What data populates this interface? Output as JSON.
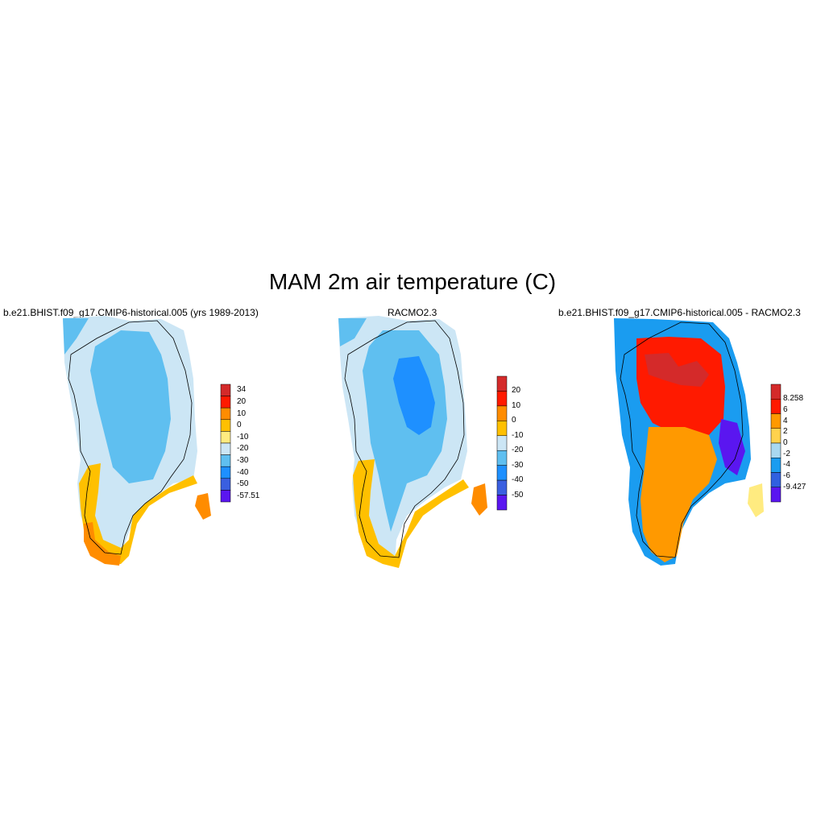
{
  "title": "MAM 2m air temperature (C)",
  "panels": [
    {
      "title": "b.e21.BHIST.f09_g17.CMIP6-historical.005 (yrs 1989-2013)",
      "colorbar": {
        "labels": [
          "34",
          "20",
          "10",
          "0",
          "-10",
          "-20",
          "-30",
          "-40",
          "-50",
          "-57.51"
        ],
        "colors": [
          "#d42a2a",
          "#ff1a00",
          "#ff8c00",
          "#ffc000",
          "#ffeb80",
          "#cce6f5",
          "#5fbff0",
          "#1e90ff",
          "#3a5fe0",
          "#5a16f0"
        ]
      }
    },
    {
      "title": "RACMO2.3",
      "colorbar": {
        "labels": [
          "20",
          "10",
          "0",
          "-10",
          "-20",
          "-30",
          "-40",
          "-50"
        ],
        "colors": [
          "#d42a2a",
          "#ff1a00",
          "#ff8c00",
          "#ffc000",
          "#cce6f5",
          "#5fbff0",
          "#1e90ff",
          "#3a5fe0",
          "#5a16f0"
        ]
      }
    },
    {
      "title": "b.e21.BHIST.f09_g17.CMIP6-historical.005 - RACMO2.3",
      "colorbar": {
        "labels": [
          "8.258",
          "6",
          "4",
          "2",
          "0",
          "-2",
          "-4",
          "-6",
          "-9.427"
        ],
        "colors": [
          "#d42a2a",
          "#ff1a00",
          "#ff9900",
          "#ffd24d",
          "#a8d8f0",
          "#1a9cf0",
          "#3060e0",
          "#5a16f0"
        ]
      }
    }
  ]
}
